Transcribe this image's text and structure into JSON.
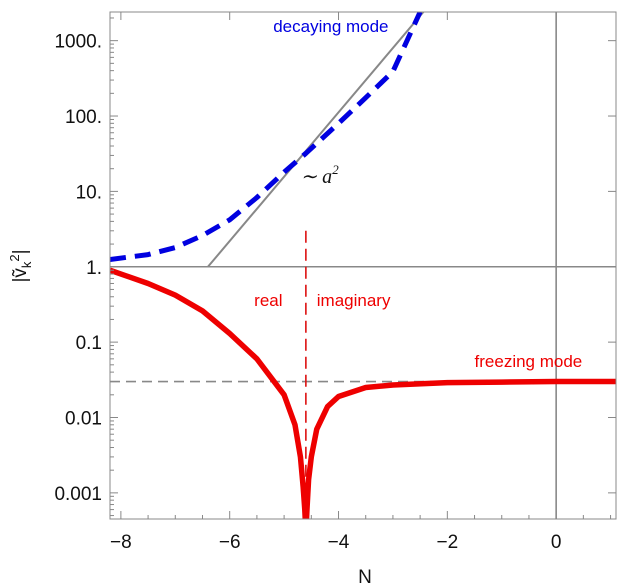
{
  "chart_data": {
    "type": "line",
    "title": "",
    "xlabel": "N",
    "ylabel": "|ṽ_k^2|",
    "xlim": [
      -8.2,
      1.1
    ],
    "ylim": [
      0.00045,
      2400
    ],
    "yscale": "log",
    "x_ticks": [
      -8,
      -6,
      -4,
      -2,
      0
    ],
    "x_tick_labels": [
      "−8",
      "−6",
      "−4",
      "−2",
      "0"
    ],
    "y_ticks": [
      0.001,
      0.01,
      0.1,
      1,
      10,
      100,
      1000
    ],
    "y_tick_labels": [
      "0.001",
      "0.01",
      "0.1",
      "1.",
      "10.",
      "100.",
      "1000."
    ],
    "grid": false,
    "series": [
      {
        "name": "decaying mode",
        "style": "dashed",
        "color": "#0000e0",
        "x": [
          -8.2,
          -7.5,
          -7.0,
          -6.5,
          -6.0,
          -5.5,
          -5.0,
          -4.6,
          -4.0,
          -3.5,
          -3.0,
          -2.5
        ],
        "y": [
          1.25,
          1.45,
          1.8,
          2.6,
          4.2,
          8.3,
          18,
          32,
          80,
          175,
          390,
          2400
        ]
      },
      {
        "name": "freezing mode",
        "style": "solid",
        "color": "#ee0000",
        "x": [
          -8.2,
          -7.5,
          -7.0,
          -6.5,
          -6.0,
          -5.5,
          -5.0,
          -4.8,
          -4.7,
          -4.65,
          -4.62,
          -4.6,
          -4.58,
          -4.55,
          -4.5,
          -4.4,
          -4.2,
          -4.0,
          -3.5,
          -3.0,
          -2.0,
          -1.0,
          0.0,
          1.1
        ],
        "y": [
          0.9,
          0.6,
          0.42,
          0.26,
          0.13,
          0.06,
          0.02,
          0.008,
          0.003,
          0.0012,
          0.0006,
          0.0003,
          0.0006,
          0.0015,
          0.003,
          0.007,
          0.014,
          0.019,
          0.025,
          0.027,
          0.029,
          0.0295,
          0.03,
          0.03
        ]
      }
    ],
    "reference_lines": [
      {
        "kind": "asymptote",
        "color": "#888888",
        "style": "solid",
        "x": [
          -6.4,
          -2.4
        ],
        "y": [
          1,
          2600
        ]
      },
      {
        "kind": "hline",
        "color": "#888888",
        "style": "solid",
        "y": 1
      },
      {
        "kind": "vline",
        "color": "#888888",
        "style": "solid",
        "x": 0
      },
      {
        "kind": "hline",
        "color": "#888888",
        "style": "dashed",
        "y": 0.03
      },
      {
        "kind": "vline",
        "color": "#dd1111",
        "style": "dashed",
        "x": -4.6,
        "y": [
          0.00045,
          3
        ]
      }
    ],
    "annotations": [
      {
        "text": "decaying mode",
        "color": "#0000e0",
        "x": -5.2,
        "y": 1300
      },
      {
        "text": "∼ a",
        "superscript": "2",
        "color": "#111111",
        "x": -4.7,
        "y": 13
      },
      {
        "text": "real",
        "color": "#ee0000",
        "x": -5.55,
        "y": 0.3
      },
      {
        "text": "imaginary",
        "color": "#ee0000",
        "x": -4.4,
        "y": 0.3
      },
      {
        "text": "freezing mode",
        "color": "#ee0000",
        "x": -1.5,
        "y": 0.047
      }
    ]
  }
}
